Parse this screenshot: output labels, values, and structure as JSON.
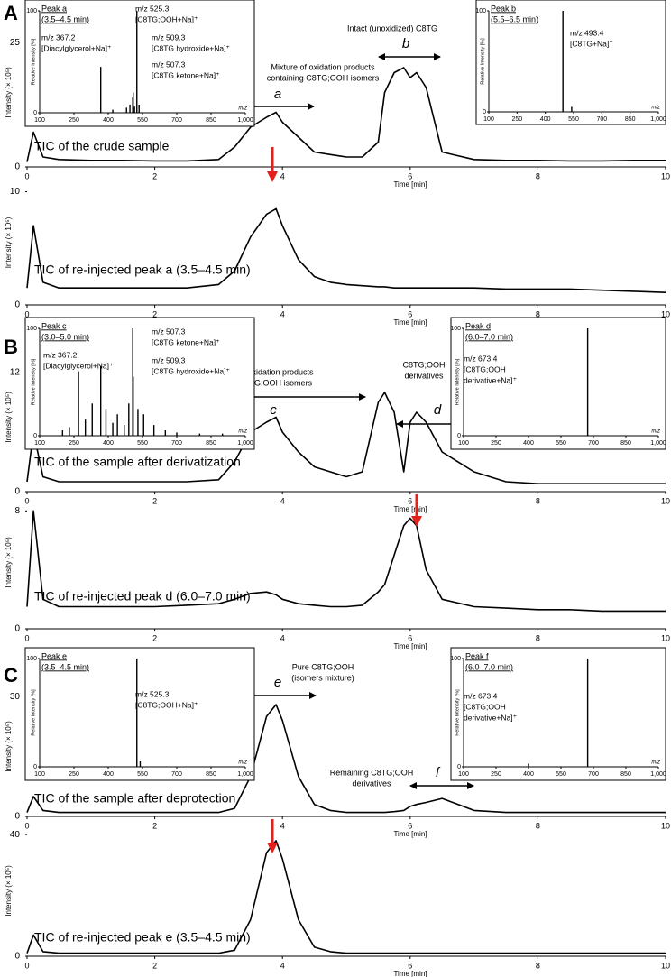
{
  "panel_labels": [
    "A",
    "B",
    "C"
  ],
  "chart_data": [
    {
      "type": "line",
      "trace_label": "TIC of the crude sample",
      "ylabel": "Intensity (× 10⁵)",
      "xlabel": "Time [min]",
      "color": "#000000",
      "x": [
        0,
        0.1,
        0.25,
        0.5,
        1,
        1.5,
        2,
        2.5,
        3,
        3.25,
        3.5,
        3.75,
        3.9,
        4,
        4.25,
        4.5,
        4.75,
        5,
        5.25,
        5.5,
        5.6,
        5.75,
        5.9,
        6,
        6.1,
        6.25,
        6.5,
        7,
        7.5,
        8,
        8.5,
        9,
        9.5,
        10
      ],
      "values": [
        1,
        7,
        2,
        1.5,
        1.3,
        1.3,
        1.2,
        1.2,
        1.5,
        4,
        8,
        10,
        11,
        9,
        6,
        3,
        2.5,
        2,
        2,
        5,
        15,
        19,
        20,
        18,
        19,
        16,
        3,
        1.5,
        1.3,
        1.3,
        1.2,
        1.2,
        1.3,
        1.3
      ],
      "xlim": [
        0,
        10
      ],
      "ylim": [
        0,
        30
      ],
      "xticks": [
        0,
        2,
        4,
        6,
        8,
        10
      ],
      "yticks": [
        0,
        25
      ],
      "annotations": [
        {
          "text": "Mixture of oxidation products",
          "color": "#000000"
        },
        {
          "text": "containing C8TG;OOH isomers",
          "color": "#000000"
        },
        {
          "text": "a",
          "color": "#000000"
        },
        {
          "text": "Intact (unoxidized) C8TG",
          "color": "#000000"
        },
        {
          "text": "b",
          "color": "#000000"
        }
      ]
    },
    {
      "type": "line",
      "trace_label": "TIC of re-injected peak a (3.5–4.5 min)",
      "ylabel": "Intensity (× 10⁵)",
      "xlabel": "Time [min]",
      "color": "#000000",
      "x": [
        0,
        0.1,
        0.25,
        0.5,
        1,
        1.5,
        2,
        2.5,
        3,
        3.25,
        3.5,
        3.75,
        3.9,
        4,
        4.25,
        4.5,
        4.75,
        5,
        5.25,
        5.5,
        5.6,
        5.75,
        5.9,
        6,
        6.1,
        6.25,
        6.5,
        7,
        7.5,
        8,
        8.5,
        9,
        9.5,
        10
      ],
      "values": [
        1.5,
        7,
        2,
        1.5,
        1.5,
        1.5,
        1.5,
        1.5,
        1.8,
        3,
        6,
        8,
        8.5,
        7,
        4,
        2.5,
        2,
        1.8,
        1.7,
        1.6,
        1.6,
        1.5,
        1.5,
        1.5,
        1.5,
        1.5,
        1.5,
        1.5,
        1.4,
        1.4,
        1.4,
        1.3,
        1.2,
        1.1
      ],
      "xlim": [
        0,
        10
      ],
      "ylim": [
        0,
        11
      ],
      "xticks": [
        0,
        2,
        4,
        6,
        8,
        10
      ],
      "yticks": [
        0,
        10
      ],
      "annotations": []
    },
    {
      "type": "line",
      "trace_label": "TIC of the sample after derivatization",
      "ylabel": "Intensity (× 10⁵)",
      "xlabel": "Time [min]",
      "color": "#000000",
      "x": [
        0,
        0.1,
        0.25,
        0.5,
        1,
        1.5,
        2,
        2.5,
        3,
        3.25,
        3.5,
        3.75,
        3.9,
        4,
        4.25,
        4.5,
        4.75,
        5,
        5.25,
        5.5,
        5.6,
        5.75,
        5.9,
        6,
        6.1,
        6.25,
        6.5,
        7,
        7.5,
        8,
        8.5,
        9,
        9.5,
        10
      ],
      "values": [
        1,
        6,
        1.5,
        1,
        1,
        1,
        1,
        1,
        1.2,
        3,
        6,
        7,
        7.5,
        6,
        4,
        2.5,
        2,
        1.5,
        2,
        9,
        10,
        8,
        2,
        7,
        8,
        7,
        4,
        2,
        1,
        0.8,
        0.8,
        0.8,
        0.8,
        0.8
      ],
      "xlim": [
        0,
        10
      ],
      "ylim": [
        0,
        15
      ],
      "xticks": [
        0,
        2,
        4,
        6,
        8,
        10
      ],
      "yticks": [
        0,
        12
      ],
      "annotations": [
        {
          "text": "Mixture of oxidation products",
          "color": "#000000"
        },
        {
          "text": "without C8TG;OOH isomers",
          "color": "#000000"
        },
        {
          "text": "c",
          "color": "#000000"
        },
        {
          "text": "C8TG;OOH",
          "color": "#000000"
        },
        {
          "text": "derivatives",
          "color": "#000000"
        },
        {
          "text": "d",
          "color": "#000000"
        }
      ]
    },
    {
      "type": "line",
      "trace_label": "TIC of re-injected peak d (6.0–7.0 min)",
      "ylabel": "Intensity (× 10⁵)",
      "xlabel": "Time [min]",
      "color": "#000000",
      "x": [
        0,
        0.1,
        0.25,
        0.5,
        1,
        1.5,
        2,
        2.5,
        3,
        3.25,
        3.5,
        3.75,
        3.9,
        4,
        4.25,
        4.5,
        4.75,
        5,
        5.25,
        5.5,
        5.6,
        5.75,
        5.9,
        6,
        6.1,
        6.25,
        6.5,
        7,
        7.5,
        8,
        8.5,
        9,
        9.5,
        10
      ],
      "values": [
        1.5,
        8,
        2,
        1.5,
        1.5,
        1.5,
        1.5,
        1.6,
        1.7,
        2,
        2.4,
        2.5,
        2.3,
        2,
        1.7,
        1.6,
        1.5,
        1.5,
        1.6,
        2.5,
        3,
        5,
        7,
        7.5,
        7,
        4,
        2,
        1.5,
        1.4,
        1.3,
        1.3,
        1.2,
        1.2,
        1.2
      ],
      "xlim": [
        0,
        10
      ],
      "ylim": [
        0,
        9
      ],
      "xticks": [
        0,
        2,
        4,
        6,
        8,
        10
      ],
      "yticks": [
        0,
        8
      ],
      "annotations": []
    },
    {
      "type": "line",
      "trace_label": "TIC of the sample after deprotection",
      "ylabel": "Intensity (× 10⁵)",
      "xlabel": "Time [min]",
      "color": "#000000",
      "x": [
        0,
        0.1,
        0.25,
        0.5,
        1,
        1.5,
        2,
        2.5,
        3,
        3.25,
        3.5,
        3.75,
        3.9,
        4,
        4.25,
        4.5,
        4.75,
        5,
        5.25,
        5.5,
        5.6,
        5.75,
        5.9,
        6,
        6.1,
        6.25,
        6.5,
        7,
        7.5,
        8,
        8.5,
        9,
        9.5,
        10
      ],
      "values": [
        1,
        5,
        1.5,
        1,
        1,
        1,
        1,
        1,
        1,
        2,
        10,
        25,
        28,
        24,
        10,
        3,
        1.5,
        1,
        1,
        1,
        1,
        1.2,
        1.5,
        2.5,
        3,
        3.5,
        4.5,
        1.5,
        1,
        1,
        1,
        1,
        1,
        1
      ],
      "xlim": [
        0,
        10
      ],
      "ylim": [
        0,
        35
      ],
      "xticks": [
        0,
        2,
        4,
        6,
        8,
        10
      ],
      "yticks": [
        0,
        30
      ],
      "annotations": [
        {
          "text": "Pure C8TG;OOH",
          "color": "#000000"
        },
        {
          "text": "(isomers mixture)",
          "color": "#000000"
        },
        {
          "text": "e",
          "color": "#000000"
        },
        {
          "text": "Remaining C8TG;OOH",
          "color": "#000000"
        },
        {
          "text": "derivatives",
          "color": "#000000"
        },
        {
          "text": "f",
          "color": "#000000"
        }
      ]
    },
    {
      "type": "line",
      "trace_label": "TIC of re-injected peak e (3.5–4.5 min)",
      "ylabel": "Intensity (× 10⁵)",
      "xlabel": "Time [min]",
      "color": "#000000",
      "x": [
        0,
        0.1,
        0.25,
        0.5,
        1,
        1.5,
        2,
        2.5,
        3,
        3.25,
        3.5,
        3.75,
        3.9,
        4,
        4.25,
        4.5,
        4.75,
        5,
        5.25,
        5.5,
        5.6,
        5.75,
        5.9,
        6,
        6.1,
        6.25,
        6.5,
        7,
        7.5,
        8,
        8.5,
        9,
        9.5,
        10
      ],
      "values": [
        1,
        7,
        1.5,
        1,
        1,
        1,
        1,
        1,
        1,
        2,
        12,
        34,
        38,
        32,
        12,
        3,
        1.5,
        1,
        1,
        1,
        1,
        1,
        1,
        1,
        1,
        1,
        1,
        1,
        1,
        1,
        1,
        1,
        1,
        1
      ],
      "xlim": [
        0,
        10
      ],
      "ylim": [
        0,
        43
      ],
      "xticks": [
        0,
        2,
        4,
        6,
        8,
        10
      ],
      "yticks": [
        0,
        40
      ],
      "annotations": []
    },
    {
      "type": "bar",
      "title": "Peak a",
      "subtitle": "(3.5–4.5 min)",
      "ylabel": "Relative Intensity [%]",
      "xlabel": "m/z",
      "color": "#000000",
      "x": [
        367.2,
        420,
        480,
        495,
        507.3,
        509.3,
        515,
        525.3,
        535
      ],
      "values": [
        45,
        3,
        5,
        8,
        15,
        20,
        6,
        100,
        8
      ],
      "xlim": [
        100,
        1000
      ],
      "ylim": [
        0,
        100
      ],
      "xticks": [
        100,
        250,
        400,
        550,
        700,
        850,
        {
          "value": 1000,
          "label": "1,000"
        }
      ],
      "yticks": [
        0,
        100
      ],
      "annotations": [
        {
          "text": "m/z 525.3",
          "color": "#e3201b"
        },
        {
          "text": "[C8TG;OOH+Na]⁺",
          "color": "#e3201b"
        },
        {
          "text": "m/z 367.2",
          "color": "#000000"
        },
        {
          "text": "[Diacylglycerol+Na]⁺",
          "color": "#000000"
        },
        {
          "text": "m/z 509.3",
          "color": "#000000"
        },
        {
          "text": "[C8TG hydroxide+Na]⁺",
          "color": "#000000"
        },
        {
          "text": "m/z 507.3",
          "color": "#000000"
        },
        {
          "text": "[C8TG ketone+Na]⁺",
          "color": "#000000"
        }
      ]
    },
    {
      "type": "bar",
      "title": "Peak b",
      "subtitle": "(5.5–6.5 min)",
      "ylabel": "Relative Intensity [%]",
      "xlabel": "m/z",
      "color": "#000000",
      "x": [
        493.4,
        540
      ],
      "values": [
        100,
        5
      ],
      "xlim": [
        100,
        1000
      ],
      "ylim": [
        0,
        100
      ],
      "xticks": [
        100,
        250,
        400,
        550,
        700,
        850,
        {
          "value": 1000,
          "label": "1,000"
        }
      ],
      "yticks": [
        0,
        100
      ],
      "annotations": [
        {
          "text": "m/z 493.4",
          "color": "#000000"
        },
        {
          "text": "[C8TG+Na]⁺",
          "color": "#000000"
        }
      ]
    },
    {
      "type": "bar",
      "title": "Peak c",
      "subtitle": "(3.0–5.0 min)",
      "ylabel": "Relative Intensity [%]",
      "xlabel": "m/z",
      "color": "#000000",
      "x": [
        200,
        230,
        270,
        300,
        330,
        367.2,
        390,
        420,
        440,
        470,
        490,
        507.3,
        509.3,
        530,
        555,
        600,
        650,
        700,
        800,
        900
      ],
      "values": [
        5,
        8,
        60,
        15,
        30,
        65,
        25,
        12,
        20,
        10,
        30,
        100,
        55,
        25,
        20,
        10,
        5,
        3,
        2,
        2
      ],
      "xlim": [
        100,
        1000
      ],
      "ylim": [
        0,
        100
      ],
      "xticks": [
        100,
        250,
        400,
        550,
        700,
        850,
        {
          "value": 1000,
          "label": "1,000"
        }
      ],
      "yticks": [
        0,
        100
      ],
      "annotations": [
        {
          "text": "m/z 367.2",
          "color": "#000000"
        },
        {
          "text": "[Diacylglycerol+Na]⁺",
          "color": "#000000"
        },
        {
          "text": "m/z 507.3",
          "color": "#000000"
        },
        {
          "text": "[C8TG ketone+Na]⁺",
          "color": "#000000"
        },
        {
          "text": "m/z 509.3",
          "color": "#000000"
        },
        {
          "text": "[C8TG hydroxide+Na]⁺",
          "color": "#000000"
        }
      ]
    },
    {
      "type": "bar",
      "title": "Peak d",
      "subtitle": "(6.0–7.0 min)",
      "ylabel": "Relative Intensity [%]",
      "xlabel": "m/z",
      "color": "#000000",
      "x": [
        673.4
      ],
      "values": [
        100
      ],
      "xlim": [
        100,
        1000
      ],
      "ylim": [
        0,
        100
      ],
      "xticks": [
        100,
        250,
        400,
        550,
        700,
        850,
        {
          "value": 1000,
          "label": "1,000"
        }
      ],
      "yticks": [
        0,
        100
      ],
      "annotations": [
        {
          "text": "m/z 673.4",
          "color": "#e3201b"
        },
        {
          "text": "[C8TG;OOH",
          "color": "#e3201b"
        },
        {
          "text": "derivative+Na]⁺",
          "color": "#e3201b"
        }
      ]
    },
    {
      "type": "bar",
      "title": "Peak e",
      "subtitle": "(3.5–4.5 min)",
      "ylabel": "Relative Intensity [%]",
      "xlabel": "m/z",
      "color": "#000000",
      "x": [
        525.3,
        540
      ],
      "values": [
        100,
        5
      ],
      "xlim": [
        100,
        1000
      ],
      "ylim": [
        0,
        100
      ],
      "xticks": [
        100,
        250,
        400,
        550,
        700,
        850,
        {
          "value": 1000,
          "label": "1,000"
        }
      ],
      "yticks": [
        0,
        100
      ],
      "annotations": [
        {
          "text": "m/z 525.3",
          "color": "#e3201b"
        },
        {
          "text": "[C8TG;OOH+Na]⁺",
          "color": "#e3201b"
        }
      ]
    },
    {
      "type": "bar",
      "title": "Peak f",
      "subtitle": "(6.0–7.0 min)",
      "ylabel": "Relative Intensity [%]",
      "xlabel": "m/z",
      "color": "#000000",
      "x": [
        400,
        673.4
      ],
      "values": [
        3,
        100
      ],
      "xlim": [
        100,
        1000
      ],
      "ylim": [
        0,
        100
      ],
      "xticks": [
        100,
        250,
        400,
        550,
        700,
        850,
        {
          "value": 1000,
          "label": "1,000"
        }
      ],
      "yticks": [
        0,
        100
      ],
      "annotations": [
        {
          "text": "m/z 673.4",
          "color": "#000000"
        },
        {
          "text": "[C8TG;OOH",
          "color": "#000000"
        },
        {
          "text": "derivative+Na]⁺",
          "color": "#000000"
        }
      ]
    }
  ]
}
